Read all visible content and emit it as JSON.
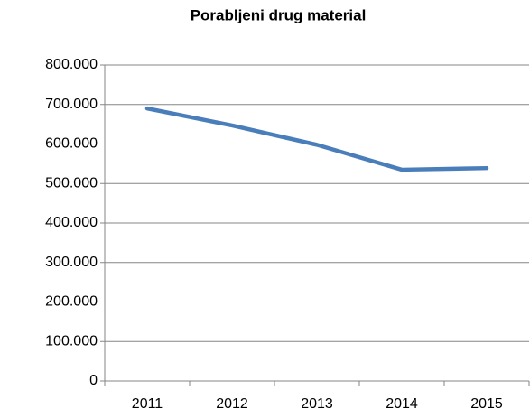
{
  "chart_data": {
    "type": "line",
    "title": "Porabljeni drug material",
    "categories": [
      "2011",
      "2012",
      "2013",
      "2014",
      "2015"
    ],
    "series": [
      {
        "name": "Porabljeni drug material",
        "color": "#4a7ebb",
        "values": [
          690000,
          647000,
          598000,
          535000,
          539000
        ]
      }
    ],
    "ylim": [
      0,
      800000
    ],
    "yticks": [
      0,
      {
        "value": 100000,
        "label": "100.000"
      },
      {
        "value": 200000,
        "label": "200.000"
      },
      {
        "value": 300000,
        "label": "300.000"
      },
      {
        "value": 400000,
        "label": "400.000"
      },
      {
        "value": 500000,
        "label": "500.000"
      },
      {
        "value": 600000,
        "label": "600.000"
      },
      {
        "value": 700000,
        "label": "700.000"
      },
      {
        "value": 800000,
        "label": "800.000"
      }
    ],
    "grid": true
  }
}
